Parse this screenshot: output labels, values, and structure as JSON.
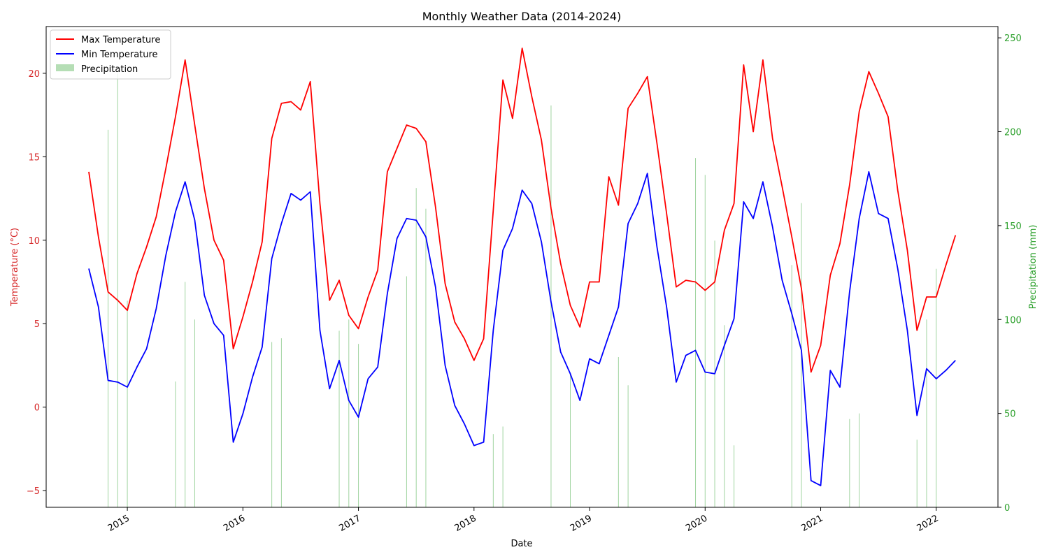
{
  "chart_data": {
    "type": "line",
    "title": "Monthly Weather Data (2014-2024)",
    "xlabel": "Date",
    "ylabel": "Temperature (°C)",
    "ylabel_right": "Precipitation (mm)",
    "x_tick_labels": [
      "2015",
      "2016",
      "2017",
      "2018",
      "2019",
      "2020",
      "2021",
      "2022"
    ],
    "ylim": [
      -6,
      22.8
    ],
    "y_ticks": [
      -5,
      0,
      5,
      10,
      15,
      20
    ],
    "ylim_right": [
      0,
      256
    ],
    "y_ticks_right": [
      0,
      50,
      100,
      150,
      200,
      250
    ],
    "x": [
      "2014-09",
      "2014-10",
      "2014-11",
      "2014-12",
      "2015-01",
      "2015-02",
      "2015-03",
      "2015-04",
      "2015-05",
      "2015-06",
      "2015-07",
      "2015-08",
      "2015-09",
      "2015-10",
      "2015-11",
      "2015-12",
      "2016-01",
      "2016-02",
      "2016-03",
      "2016-04",
      "2016-05",
      "2016-06",
      "2016-07",
      "2016-08",
      "2016-09",
      "2016-10",
      "2016-11",
      "2016-12",
      "2017-01",
      "2017-02",
      "2017-03",
      "2017-04",
      "2017-05",
      "2017-06",
      "2017-07",
      "2017-08",
      "2017-09",
      "2017-10",
      "2017-11",
      "2017-12",
      "2018-01",
      "2018-02",
      "2018-03",
      "2018-04",
      "2018-05",
      "2018-06",
      "2018-07",
      "2018-08",
      "2018-09",
      "2018-10",
      "2018-11",
      "2018-12",
      "2019-01",
      "2019-02",
      "2019-03",
      "2019-04",
      "2019-05",
      "2019-06",
      "2019-07",
      "2019-08",
      "2019-09",
      "2019-10",
      "2019-11",
      "2019-12",
      "2020-01",
      "2020-02",
      "2020-03",
      "2020-04",
      "2020-05",
      "2020-06",
      "2020-07",
      "2020-08",
      "2020-09",
      "2020-10",
      "2020-11",
      "2020-12",
      "2021-01",
      "2021-02",
      "2021-03",
      "2021-04",
      "2021-05",
      "2021-06",
      "2021-07",
      "2021-08",
      "2021-09",
      "2021-10",
      "2021-11",
      "2021-12",
      "2022-01",
      "2022-02",
      "2022-03"
    ],
    "series": [
      {
        "name": "Max Temperature",
        "color": "#ff0000",
        "values": [
          14.1,
          10.2,
          6.9,
          6.4,
          5.8,
          8.0,
          9.6,
          11.4,
          14.3,
          17.4,
          20.8,
          16.9,
          13.1,
          10.0,
          8.8,
          3.5,
          5.4,
          7.5,
          9.9,
          16.1,
          18.2,
          18.3,
          17.8,
          19.5,
          12.2,
          6.4,
          7.6,
          5.5,
          4.7,
          6.6,
          8.2,
          14.1,
          15.5,
          16.9,
          16.7,
          15.9,
          12.0,
          7.4,
          5.1,
          4.1,
          2.8,
          4.1,
          11.8,
          19.6,
          17.3,
          21.5,
          18.6,
          16.0,
          11.9,
          8.6,
          6.1,
          4.8,
          7.5,
          7.5,
          13.8,
          12.1,
          17.9,
          18.8,
          19.8,
          15.8,
          11.6,
          7.2,
          7.6,
          7.5,
          7.0,
          7.5,
          10.6,
          12.2,
          20.5,
          16.5,
          20.8,
          16.1,
          13.2,
          10.2,
          7.1,
          2.1,
          3.7,
          7.9,
          9.8,
          13.3,
          17.7,
          20.1,
          18.8,
          17.4,
          13.0,
          9.4,
          4.6,
          6.6,
          6.6,
          8.5,
          10.3
        ]
      },
      {
        "name": "Min Temperature",
        "color": "#0000ff",
        "values": [
          8.3,
          6.0,
          1.6,
          1.5,
          1.2,
          2.4,
          3.5,
          5.9,
          9.1,
          11.7,
          13.5,
          11.2,
          6.7,
          5.0,
          4.3,
          -2.1,
          -0.4,
          1.8,
          3.6,
          8.9,
          11.0,
          12.8,
          12.4,
          12.9,
          4.6,
          1.1,
          2.8,
          0.4,
          -0.6,
          1.7,
          2.4,
          6.8,
          10.1,
          11.3,
          11.2,
          10.2,
          7.2,
          2.5,
          0.1,
          -1.0,
          -2.3,
          -2.1,
          4.6,
          9.4,
          10.7,
          13.0,
          12.2,
          9.9,
          6.3,
          3.3,
          2.0,
          0.4,
          2.9,
          2.6,
          4.3,
          6.0,
          11.0,
          12.2,
          14.0,
          9.6,
          6.0,
          1.5,
          3.1,
          3.4,
          2.1,
          2.0,
          3.7,
          5.3,
          12.3,
          11.3,
          13.5,
          10.8,
          7.6,
          5.6,
          3.4,
          -4.4,
          -4.7,
          2.2,
          1.2,
          6.9,
          11.3,
          14.1,
          11.6,
          11.3,
          8.3,
          4.6,
          -0.5,
          2.3,
          1.7,
          2.2,
          2.8
        ]
      },
      {
        "name": "Precipitation",
        "color": "#2ca02c",
        "values": [
          0,
          0,
          201,
          231,
          110,
          0,
          0,
          0,
          0,
          67,
          120,
          100,
          0,
          0,
          0,
          0,
          0,
          0,
          0,
          88,
          90,
          0,
          0,
          0,
          0,
          0,
          94,
          100,
          87,
          0,
          0,
          0,
          0,
          123,
          170,
          159,
          0,
          0,
          0,
          0,
          0,
          0,
          39,
          43,
          0,
          0,
          0,
          0,
          214,
          0,
          71,
          0,
          0,
          0,
          0,
          80,
          65,
          0,
          0,
          0,
          0,
          0,
          0,
          186,
          177,
          142,
          97,
          33,
          0,
          0,
          0,
          0,
          0,
          129,
          162,
          0,
          0,
          0,
          0,
          47,
          50,
          0,
          0,
          0,
          0,
          0,
          36,
          100,
          127,
          0,
          0
        ]
      }
    ],
    "legend_position": "upper-left",
    "grid": false
  }
}
